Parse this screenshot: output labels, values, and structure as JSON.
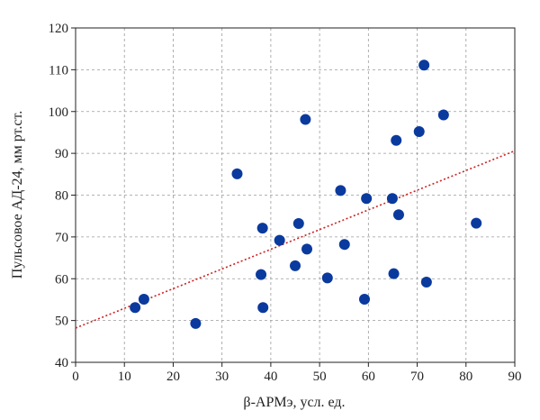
{
  "chart_data": {
    "type": "scatter",
    "title": "",
    "xlabel": "β-APMэ, усл. ед.",
    "ylabel": "Пульсовое АД-24, мм рт.ст.",
    "xlim": [
      0,
      90
    ],
    "ylim": [
      40,
      120
    ],
    "xticks": [
      0,
      10,
      20,
      30,
      40,
      50,
      60,
      70,
      80,
      90
    ],
    "yticks": [
      40,
      50,
      60,
      70,
      80,
      90,
      100,
      110,
      120
    ],
    "grid": true,
    "series": [
      {
        "color": "#0a3a9e",
        "points": [
          [
            12.2,
            53.1
          ],
          [
            14.0,
            55.1
          ],
          [
            24.6,
            49.3
          ],
          [
            33.1,
            85.1
          ],
          [
            38.0,
            61.0
          ],
          [
            38.3,
            72.1
          ],
          [
            38.4,
            53.1
          ],
          [
            41.8,
            69.2
          ],
          [
            45.0,
            63.1
          ],
          [
            45.7,
            73.2
          ],
          [
            47.1,
            98.1
          ],
          [
            47.4,
            67.1
          ],
          [
            51.6,
            60.2
          ],
          [
            54.3,
            81.1
          ],
          [
            55.1,
            68.2
          ],
          [
            59.2,
            55.1
          ],
          [
            59.6,
            79.2
          ],
          [
            64.9,
            79.2
          ],
          [
            65.2,
            61.2
          ],
          [
            65.7,
            93.1
          ],
          [
            66.2,
            75.3
          ],
          [
            70.4,
            95.2
          ],
          [
            71.4,
            111.1
          ],
          [
            71.9,
            59.2
          ],
          [
            75.4,
            99.2
          ],
          [
            82.1,
            73.3
          ]
        ]
      }
    ],
    "trendline": {
      "color": "#cc2222",
      "style": "dotted",
      "start": [
        0,
        48.2
      ],
      "end": [
        90,
        90.6
      ]
    }
  }
}
